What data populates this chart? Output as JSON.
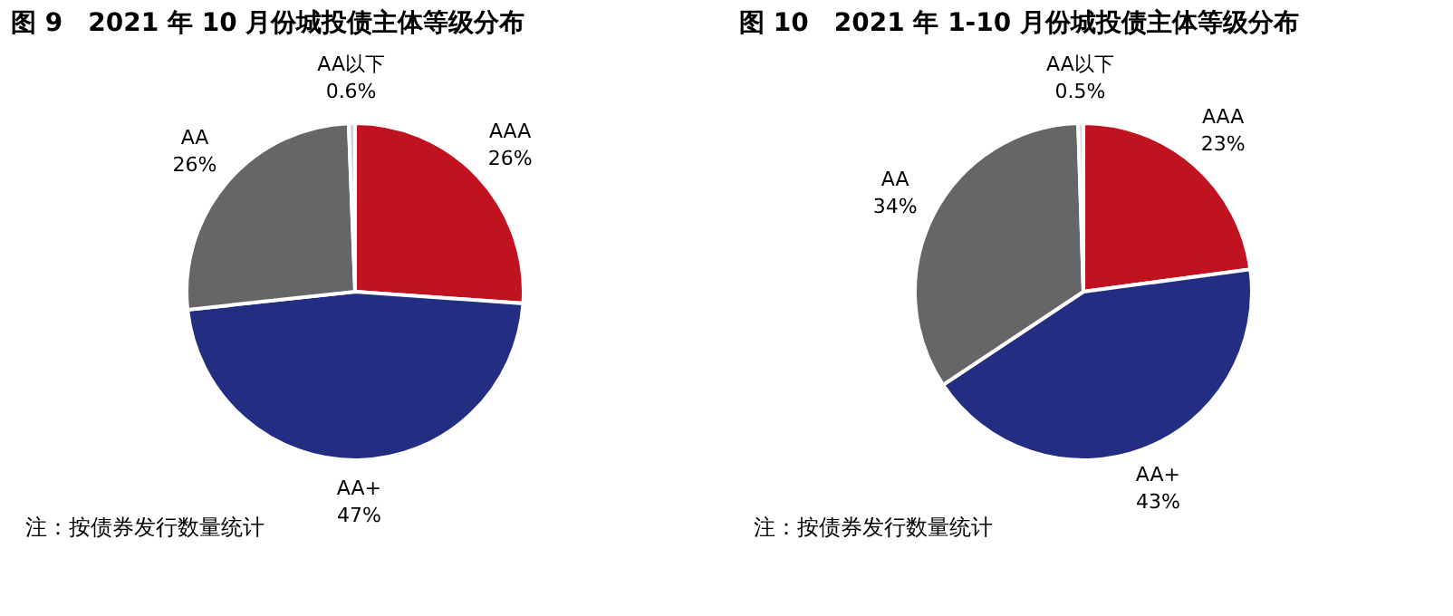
{
  "chart_data": [
    {
      "type": "pie",
      "title": "图 9　2021 年 10 月份城投债主体等级分布",
      "categories": [
        "AAA",
        "AA+",
        "AA",
        "AA以下"
      ],
      "values": [
        26,
        47,
        26,
        0.6
      ],
      "value_labels": [
        "26%",
        "47%",
        "26%",
        "0.6%"
      ],
      "colors": [
        "#c0121f",
        "#232d82",
        "#666666",
        "#c5d3e0"
      ],
      "annotations": [
        "注：按债券发行数量统计"
      ]
    },
    {
      "type": "pie",
      "title": "图 10　2021 年 1-10 月份城投债主体等级分布",
      "categories": [
        "AAA",
        "AA+",
        "AA",
        "AA以下"
      ],
      "values": [
        23,
        43,
        34,
        0.5
      ],
      "value_labels": [
        "23%",
        "43%",
        "34%",
        "0.5%"
      ],
      "colors": [
        "#c0121f",
        "#232d82",
        "#666666",
        "#c5d3e0"
      ],
      "annotations": [
        "注：按债券发行数量统计"
      ]
    }
  ]
}
